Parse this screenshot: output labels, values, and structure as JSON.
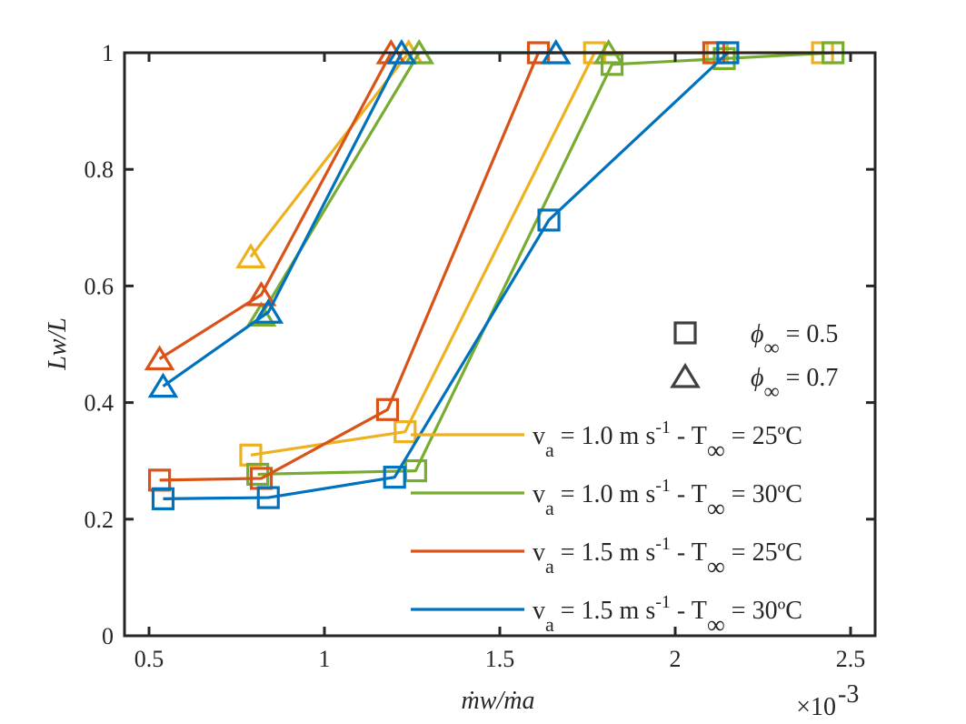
{
  "chart_data": {
    "type": "line",
    "xlabel": "ṁw/ṁa",
    "ylabel": "Lw/L",
    "x_exponent_label": "×10",
    "x_exponent_power": "-3",
    "xlim": [
      0.43,
      2.57
    ],
    "ylim": [
      0,
      1
    ],
    "x_ticks": [
      0.5,
      1,
      1.5,
      2,
      2.5
    ],
    "x_tick_labels": [
      "0.5",
      "1",
      "1.5",
      "2",
      "2.5"
    ],
    "y_ticks": [
      0,
      0.2,
      0.4,
      0.6,
      0.8,
      1
    ],
    "y_tick_labels": [
      "0",
      "0.2",
      "0.4",
      "0.6",
      "0.8",
      "1"
    ],
    "grid": false,
    "legend_position": "lower-right",
    "marker_legend": [
      {
        "marker": "square",
        "label": "ϕ∞ = 0.5",
        "prefix": "ϕ",
        "sub": "∞",
        "suffix": " = 0.5"
      },
      {
        "marker": "triangle",
        "label": "ϕ∞ = 0.7",
        "prefix": "ϕ",
        "sub": "∞",
        "suffix": " = 0.7"
      }
    ],
    "series": [
      {
        "name": "va = 1.0 m s-1 - T∞ = 25ºC",
        "legend": {
          "v": "v",
          "v_sub": "a",
          "speed": " = 1.0 m s",
          "exp": "-1",
          "t": " - T",
          "t_sub": "∞",
          "temp": " = 25ºC"
        },
        "color": "#EDB120",
        "squares": {
          "x": [
            0.79,
            1.23,
            1.77,
            2.12,
            2.42
          ],
          "y": [
            0.31,
            0.35,
            1.0,
            1.0,
            1.0
          ]
        },
        "triangles": {
          "x": [
            0.79,
            1.24
          ],
          "y": [
            0.65,
            1.0
          ]
        }
      },
      {
        "name": "va = 1.0 m s-1 - T∞ = 30ºC",
        "legend": {
          "v": "v",
          "v_sub": "a",
          "speed": " = 1.0 m s",
          "exp": "-1",
          "t": " - T",
          "t_sub": "∞",
          "temp": " = 30ºC"
        },
        "color": "#77AC30",
        "squares": {
          "x": [
            0.81,
            1.26,
            1.82,
            2.14,
            2.45
          ],
          "y": [
            0.277,
            0.283,
            0.98,
            0.99,
            1.0
          ]
        },
        "triangles": {
          "x": [
            0.82,
            1.27,
            1.81
          ],
          "y": [
            0.55,
            1.0,
            1.0
          ]
        }
      },
      {
        "name": "va = 1.5 m s-1 - T∞ = 25ºC",
        "legend": {
          "v": "v",
          "v_sub": "a",
          "speed": " = 1.5 m s",
          "exp": "-1",
          "t": " - T",
          "t_sub": "∞",
          "temp": " = 25ºC"
        },
        "color": "#D95319",
        "squares": {
          "x": [
            0.53,
            0.82,
            1.18,
            1.61,
            2.11
          ],
          "y": [
            0.267,
            0.27,
            0.388,
            1.0,
            1.0
          ]
        },
        "triangles": {
          "x": [
            0.53,
            0.82,
            1.19
          ],
          "y": [
            0.475,
            0.585,
            1.0
          ]
        }
      },
      {
        "name": "va = 1.5 m s-1 - T∞ = 30ºC",
        "legend": {
          "v": "v",
          "v_sub": "a",
          "speed": " = 1.5 m s",
          "exp": "-1",
          "t": " - T",
          "t_sub": "∞",
          "temp": " = 30ºC"
        },
        "color": "#0072BD",
        "squares": {
          "x": [
            0.54,
            0.84,
            1.2,
            1.64,
            2.15
          ],
          "y": [
            0.235,
            0.237,
            0.272,
            0.713,
            1.0
          ]
        },
        "triangles": {
          "x": [
            0.54,
            0.84,
            1.22,
            1.66
          ],
          "y": [
            0.428,
            0.555,
            1.0,
            1.0
          ]
        }
      }
    ]
  }
}
